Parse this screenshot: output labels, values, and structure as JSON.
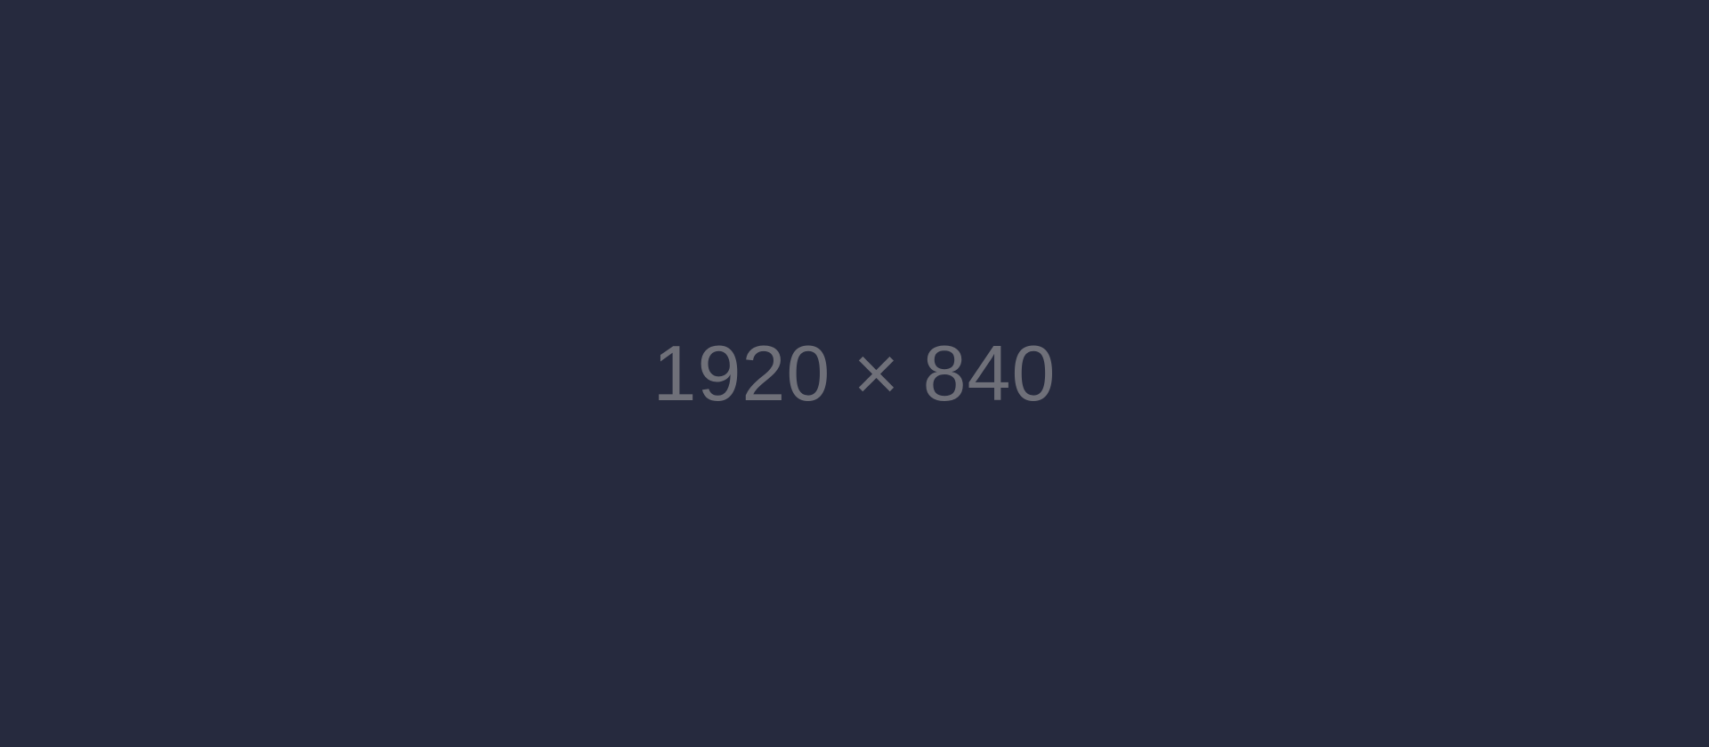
{
  "placeholder": {
    "label": "1920 × 840",
    "background_color": "#262a3e",
    "text_color": "#6f7079"
  }
}
